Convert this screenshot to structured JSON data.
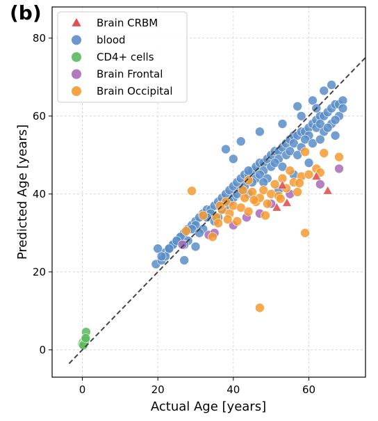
{
  "panel_label": "(b)",
  "chart_data": {
    "type": "scatter",
    "xlabel": "Actual Age [years]",
    "ylabel": "Predicted Age [years]",
    "xlim": [
      -8,
      75
    ],
    "ylim": [
      -7,
      88
    ],
    "xticks": [
      0,
      20,
      40,
      60
    ],
    "yticks": [
      0,
      20,
      40,
      60,
      80
    ],
    "grid": true,
    "legend_position": "top-left",
    "identity_line": {
      "from": [
        -3.5,
        -3.5
      ],
      "to": [
        75,
        75
      ],
      "style": "dashed",
      "color": "#444444"
    },
    "series": [
      {
        "name": "Brain CRBM",
        "marker": "triangle",
        "color": "#e05252",
        "x": [
          51.5,
          54.2,
          65.0,
          53.0,
          62.0
        ],
        "y": [
          36.5,
          37.7,
          40.8,
          42.2,
          44.5
        ]
      },
      {
        "name": "blood",
        "marker": "circle",
        "color": "#5a8dc8",
        "x": [
          19.5,
          21,
          22,
          23,
          24,
          25,
          26,
          27,
          28,
          29,
          30,
          31,
          32,
          33,
          34,
          35,
          36,
          37,
          38,
          39,
          40,
          41,
          42,
          43,
          44,
          45,
          46,
          47,
          48,
          49,
          50,
          51,
          52,
          53,
          54,
          55,
          56,
          57,
          58,
          59,
          60,
          61,
          62,
          63,
          64,
          65,
          66,
          67,
          68,
          69,
          20,
          22,
          24,
          26,
          28,
          30,
          32,
          34,
          36,
          38,
          40,
          42,
          44,
          46,
          48,
          50,
          52,
          54,
          56,
          58,
          60,
          62,
          64,
          66,
          68,
          21,
          23,
          25,
          27,
          29,
          31,
          33,
          35,
          37,
          39,
          41,
          43,
          45,
          47,
          49,
          51,
          53,
          55,
          57,
          59,
          61,
          63,
          65,
          67,
          69,
          38,
          42,
          47,
          53,
          57,
          61,
          64,
          66,
          58,
          62,
          27,
          30,
          40,
          44,
          48,
          52,
          56,
          60,
          63,
          67
        ],
        "y": [
          22,
          23,
          25,
          26,
          27,
          28,
          29,
          30,
          31,
          32,
          33,
          34,
          35,
          36,
          36,
          37,
          38,
          39,
          40,
          41,
          42,
          43,
          44,
          45,
          45,
          46,
          47,
          48,
          48,
          49,
          50,
          51,
          51,
          52,
          53,
          54,
          55,
          55,
          56,
          56,
          57,
          58,
          59,
          60,
          60,
          61,
          62,
          63,
          63,
          64,
          26,
          24,
          27,
          29,
          28,
          32,
          31,
          35,
          34,
          37,
          39,
          41,
          40,
          44,
          46,
          47,
          49,
          50,
          53,
          52,
          55,
          57,
          56,
          58,
          60,
          24,
          26,
          28,
          27,
          31,
          30,
          34,
          33,
          36,
          38,
          40,
          42,
          43,
          45,
          44,
          48,
          47,
          51,
          50,
          54,
          53,
          58,
          57,
          59,
          62,
          51.5,
          53.5,
          56,
          58,
          62.5,
          64,
          66.5,
          68,
          60,
          62,
          23,
          26.5,
          49,
          46,
          43,
          41,
          45,
          48,
          54,
          55
        ]
      },
      {
        "name": "CD4+ cells",
        "marker": "circle",
        "color": "#5cb85c",
        "x": [
          0.0,
          0.2,
          0.5,
          0.8,
          1.0,
          0.3,
          0.9
        ],
        "y": [
          1.5,
          2.0,
          1.8,
          2.5,
          4.6,
          1.2,
          3.0
        ]
      },
      {
        "name": "Brain Frontal",
        "marker": "circle",
        "color": "#a86bb8",
        "x": [
          26.5,
          33.5,
          35.0,
          40.0,
          43.5,
          47.0,
          50.0,
          55.0,
          63.0,
          68.0
        ],
        "y": [
          27.0,
          29.5,
          30.0,
          32.0,
          34.0,
          35.0,
          37.5,
          40.0,
          42.5,
          46.5
        ]
      },
      {
        "name": "Brain Occipital",
        "marker": "circle",
        "color": "#f59a2f",
        "x": [
          47.0,
          59.0,
          29.0,
          27.5,
          32.0,
          34.5,
          35.5,
          36.0,
          37.0,
          38.0,
          39.0,
          40.0,
          41.0,
          42.0,
          43.0,
          44.0,
          45.0,
          46.0,
          47.0,
          48.0,
          49.0,
          50.0,
          51.0,
          52.0,
          53.0,
          54.0,
          55.0,
          56.0,
          57.0,
          58.0,
          59.0,
          60.0,
          62.0,
          63.0,
          64.0,
          68.0,
          42.5,
          45.5,
          38.5,
          36.5,
          44.0,
          48.5,
          52.5,
          57.5
        ],
        "y": [
          10.8,
          30.0,
          40.8,
          30.5,
          34.5,
          29.0,
          34.0,
          32.5,
          36.0,
          38.0,
          35.0,
          37.0,
          33.0,
          36.5,
          39.0,
          35.5,
          40.5,
          38.0,
          39.0,
          41.0,
          37.5,
          40.0,
          42.5,
          39.5,
          44.0,
          41.5,
          46.0,
          43.0,
          40.5,
          44.5,
          50.8,
          45.0,
          46.5,
          45.5,
          50.5,
          49.5,
          41.0,
          38.5,
          33.5,
          37.0,
          43.5,
          34.5,
          38.8,
          42.8
        ]
      }
    ]
  }
}
